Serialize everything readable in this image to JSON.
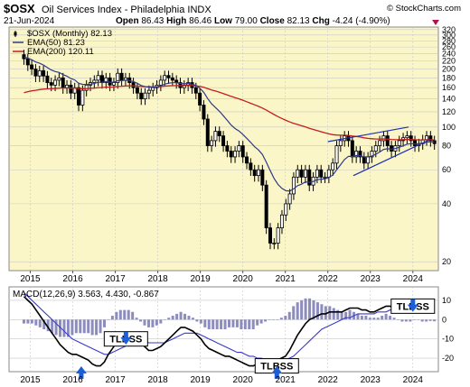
{
  "header": {
    "symbol": "$OSX",
    "name": "Oil Services Index - Philadelphia",
    "exchange": "INDX",
    "date": "21-Jun-2024",
    "open_label": "Open",
    "open": "86.43",
    "high_label": "High",
    "high": "86.46",
    "low_label": "Low",
    "low": "79.00",
    "close_label": "Close",
    "close": "82.13",
    "chg_label": "Chg",
    "chg": "-4.24 (-4.90%)",
    "watermark": "© StockCharts.com"
  },
  "colors": {
    "panel_bg": "#fbf6c8",
    "price": "#000000",
    "ema50": "#2e3a8c",
    "ema200": "#c41e1e",
    "macd_line": "#000000",
    "signal_line": "#3a3ac8",
    "histogram": "#8c8cbe",
    "annotation_arrow": "#1c5fd6",
    "grid": "#c8c8c8"
  },
  "chart_data": [
    {
      "type": "candlestick",
      "scale": "log",
      "legend_placement": "top-left",
      "legend": [
        {
          "label": "$OSX (Monthly) 82.13",
          "style": "candle"
        },
        {
          "label": "EMA(50) 81.23",
          "style": "line",
          "color": "#2e3a8c"
        },
        {
          "label": "EMA(200) 120.11",
          "style": "line",
          "color": "#c41e1e"
        }
      ],
      "x_ticks": [
        "2015",
        "2016",
        "2017",
        "2018",
        "2019",
        "2020",
        "2021",
        "2022",
        "2023",
        "2024"
      ],
      "y_ticks": [
        320,
        300,
        280,
        260,
        240,
        220,
        200,
        180,
        160,
        140,
        120,
        100,
        80,
        60,
        40,
        20
      ],
      "ylim": [
        18,
        330
      ],
      "close": [
        226,
        210,
        200,
        184,
        196,
        184,
        170,
        165,
        175,
        180,
        160,
        165,
        150,
        160,
        130,
        155,
        165,
        170,
        175,
        185,
        170,
        180,
        165,
        170,
        190,
        175,
        180,
        170,
        160,
        150,
        140,
        150,
        155,
        160,
        165,
        175,
        185,
        180,
        175,
        170,
        160,
        165,
        170,
        160,
        150,
        130,
        110,
        80,
        85,
        95,
        90,
        80,
        75,
        70,
        75,
        80,
        70,
        65,
        60,
        56,
        60,
        50,
        30,
        25,
        25,
        30,
        35,
        40,
        45,
        55,
        60,
        55,
        60,
        50,
        55,
        60,
        55,
        55,
        60,
        65,
        80,
        85,
        90,
        85,
        70,
        75,
        70,
        65,
        70,
        75,
        80,
        85,
        90,
        80,
        75,
        80,
        85,
        88,
        90,
        85,
        80,
        82,
        86,
        90,
        85,
        82
      ],
      "ema50_start": 232,
      "ema50_end": 81.23,
      "ema200_start": 148,
      "ema200_end": 120.11,
      "trendline_upper": {
        "from_year": 2022.0,
        "from_value": 84,
        "to_year": 2023.9,
        "to_value": 100
      },
      "trendline_lower": {
        "from_year": 2022.6,
        "from_value": 56,
        "to_year": 2024.4,
        "to_value": 86
      }
    },
    {
      "type": "macd",
      "legend": "MACD(12,26,9) 3.563, 4.430, -0.867",
      "y_ticks": [
        10,
        0,
        -10,
        -20
      ],
      "ylim": [
        -27,
        17
      ],
      "x_ticks": [
        "2015",
        "2016",
        "2017",
        "2018",
        "2019",
        "2020",
        "2021",
        "2022",
        "2023",
        "2024"
      ],
      "macd": [
        12,
        10,
        8,
        5,
        2,
        -1,
        -4,
        -7,
        -10,
        -13,
        -15,
        -17,
        -18,
        -18,
        -19,
        -20,
        -21,
        -23,
        -24,
        -24,
        -22,
        -18,
        -15,
        -12,
        -10,
        -9,
        -8,
        -8,
        -10,
        -12,
        -14,
        -16,
        -16,
        -15,
        -14,
        -12,
        -10,
        -8,
        -6,
        -4,
        -4,
        -5,
        -6,
        -8,
        -10,
        -13,
        -15,
        -16,
        -17,
        -18,
        -19,
        -19,
        -20,
        -21,
        -22,
        -23,
        -24,
        -24,
        -23,
        -22,
        -22,
        -21,
        -21,
        -21,
        -20,
        -19,
        -16,
        -12,
        -8,
        -5,
        -2,
        0,
        1,
        2,
        3,
        3,
        4,
        4,
        4,
        4,
        5,
        6,
        6,
        6,
        5,
        5,
        4,
        4,
        5,
        6,
        7,
        7,
        6,
        5,
        4,
        4,
        4,
        5,
        5,
        4,
        4,
        4,
        3.563
      ],
      "signal": [
        14,
        12,
        10,
        8,
        6,
        4,
        2,
        0,
        -2,
        -4,
        -6,
        -8,
        -10,
        -11,
        -12,
        -13,
        -14,
        -15,
        -16,
        -17,
        -18,
        -18,
        -17,
        -16,
        -15,
        -14,
        -13,
        -12,
        -11,
        -11,
        -11,
        -12,
        -12,
        -12,
        -12,
        -12,
        -11,
        -10,
        -9,
        -8,
        -7,
        -7,
        -7,
        -7,
        -8,
        -9,
        -10,
        -11,
        -12,
        -13,
        -14,
        -15,
        -16,
        -17,
        -17,
        -18,
        -19,
        -19,
        -20,
        -20,
        -21,
        -21,
        -21,
        -21,
        -21,
        -21,
        -20,
        -19,
        -17,
        -15,
        -13,
        -11,
        -9,
        -7,
        -5,
        -4,
        -3,
        -2,
        -1,
        0,
        1,
        1,
        2,
        3,
        3,
        3,
        3,
        3,
        4,
        4,
        4,
        5,
        5,
        5,
        5,
        5,
        5,
        5,
        5,
        5,
        5,
        4.7,
        4.43
      ],
      "annotations": [
        {
          "label": "TLBSS",
          "year": 2017.25,
          "value": -10
        },
        {
          "label": "TLBSS",
          "year": 2020.8,
          "value": -24
        },
        {
          "label": "TLBSS",
          "year": 2024.0,
          "value": 7
        }
      ],
      "arrows": [
        {
          "year": 2016.2,
          "value": -27
        },
        {
          "year": 2017.25,
          "value": -12
        },
        {
          "year": 2020.8,
          "value": -27
        },
        {
          "year": 2024.0,
          "value": 5
        }
      ]
    }
  ]
}
